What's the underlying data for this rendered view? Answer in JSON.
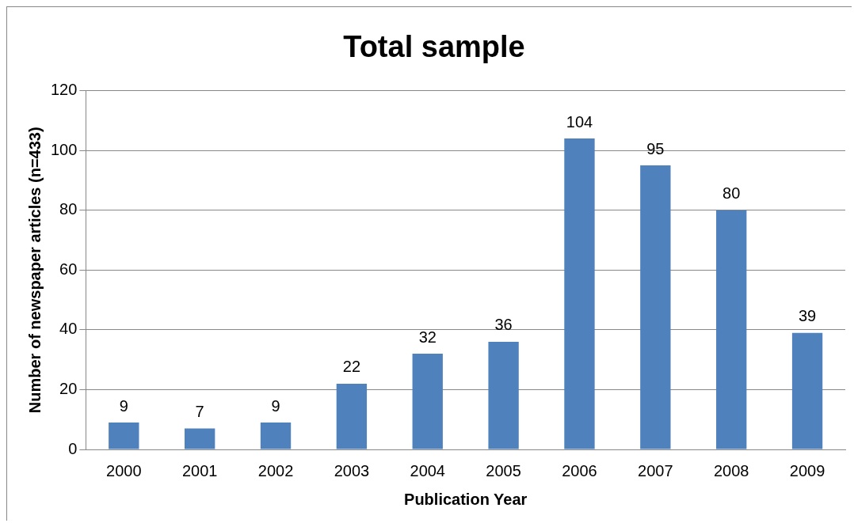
{
  "chart_data": {
    "type": "bar",
    "title": "Total sample",
    "xlabel": "Publication Year",
    "ylabel": "Number of newspaper articles (n=433)",
    "categories": [
      "2000",
      "2001",
      "2002",
      "2003",
      "2004",
      "2005",
      "2006",
      "2007",
      "2008",
      "2009"
    ],
    "values": [
      9,
      7,
      9,
      22,
      32,
      36,
      104,
      95,
      80,
      39
    ],
    "color": "#4f81bd",
    "ylim": [
      0,
      120
    ],
    "yticks": [
      0,
      20,
      40,
      60,
      80,
      100,
      120
    ],
    "grid": "y",
    "data_labels": true,
    "legend": false
  }
}
